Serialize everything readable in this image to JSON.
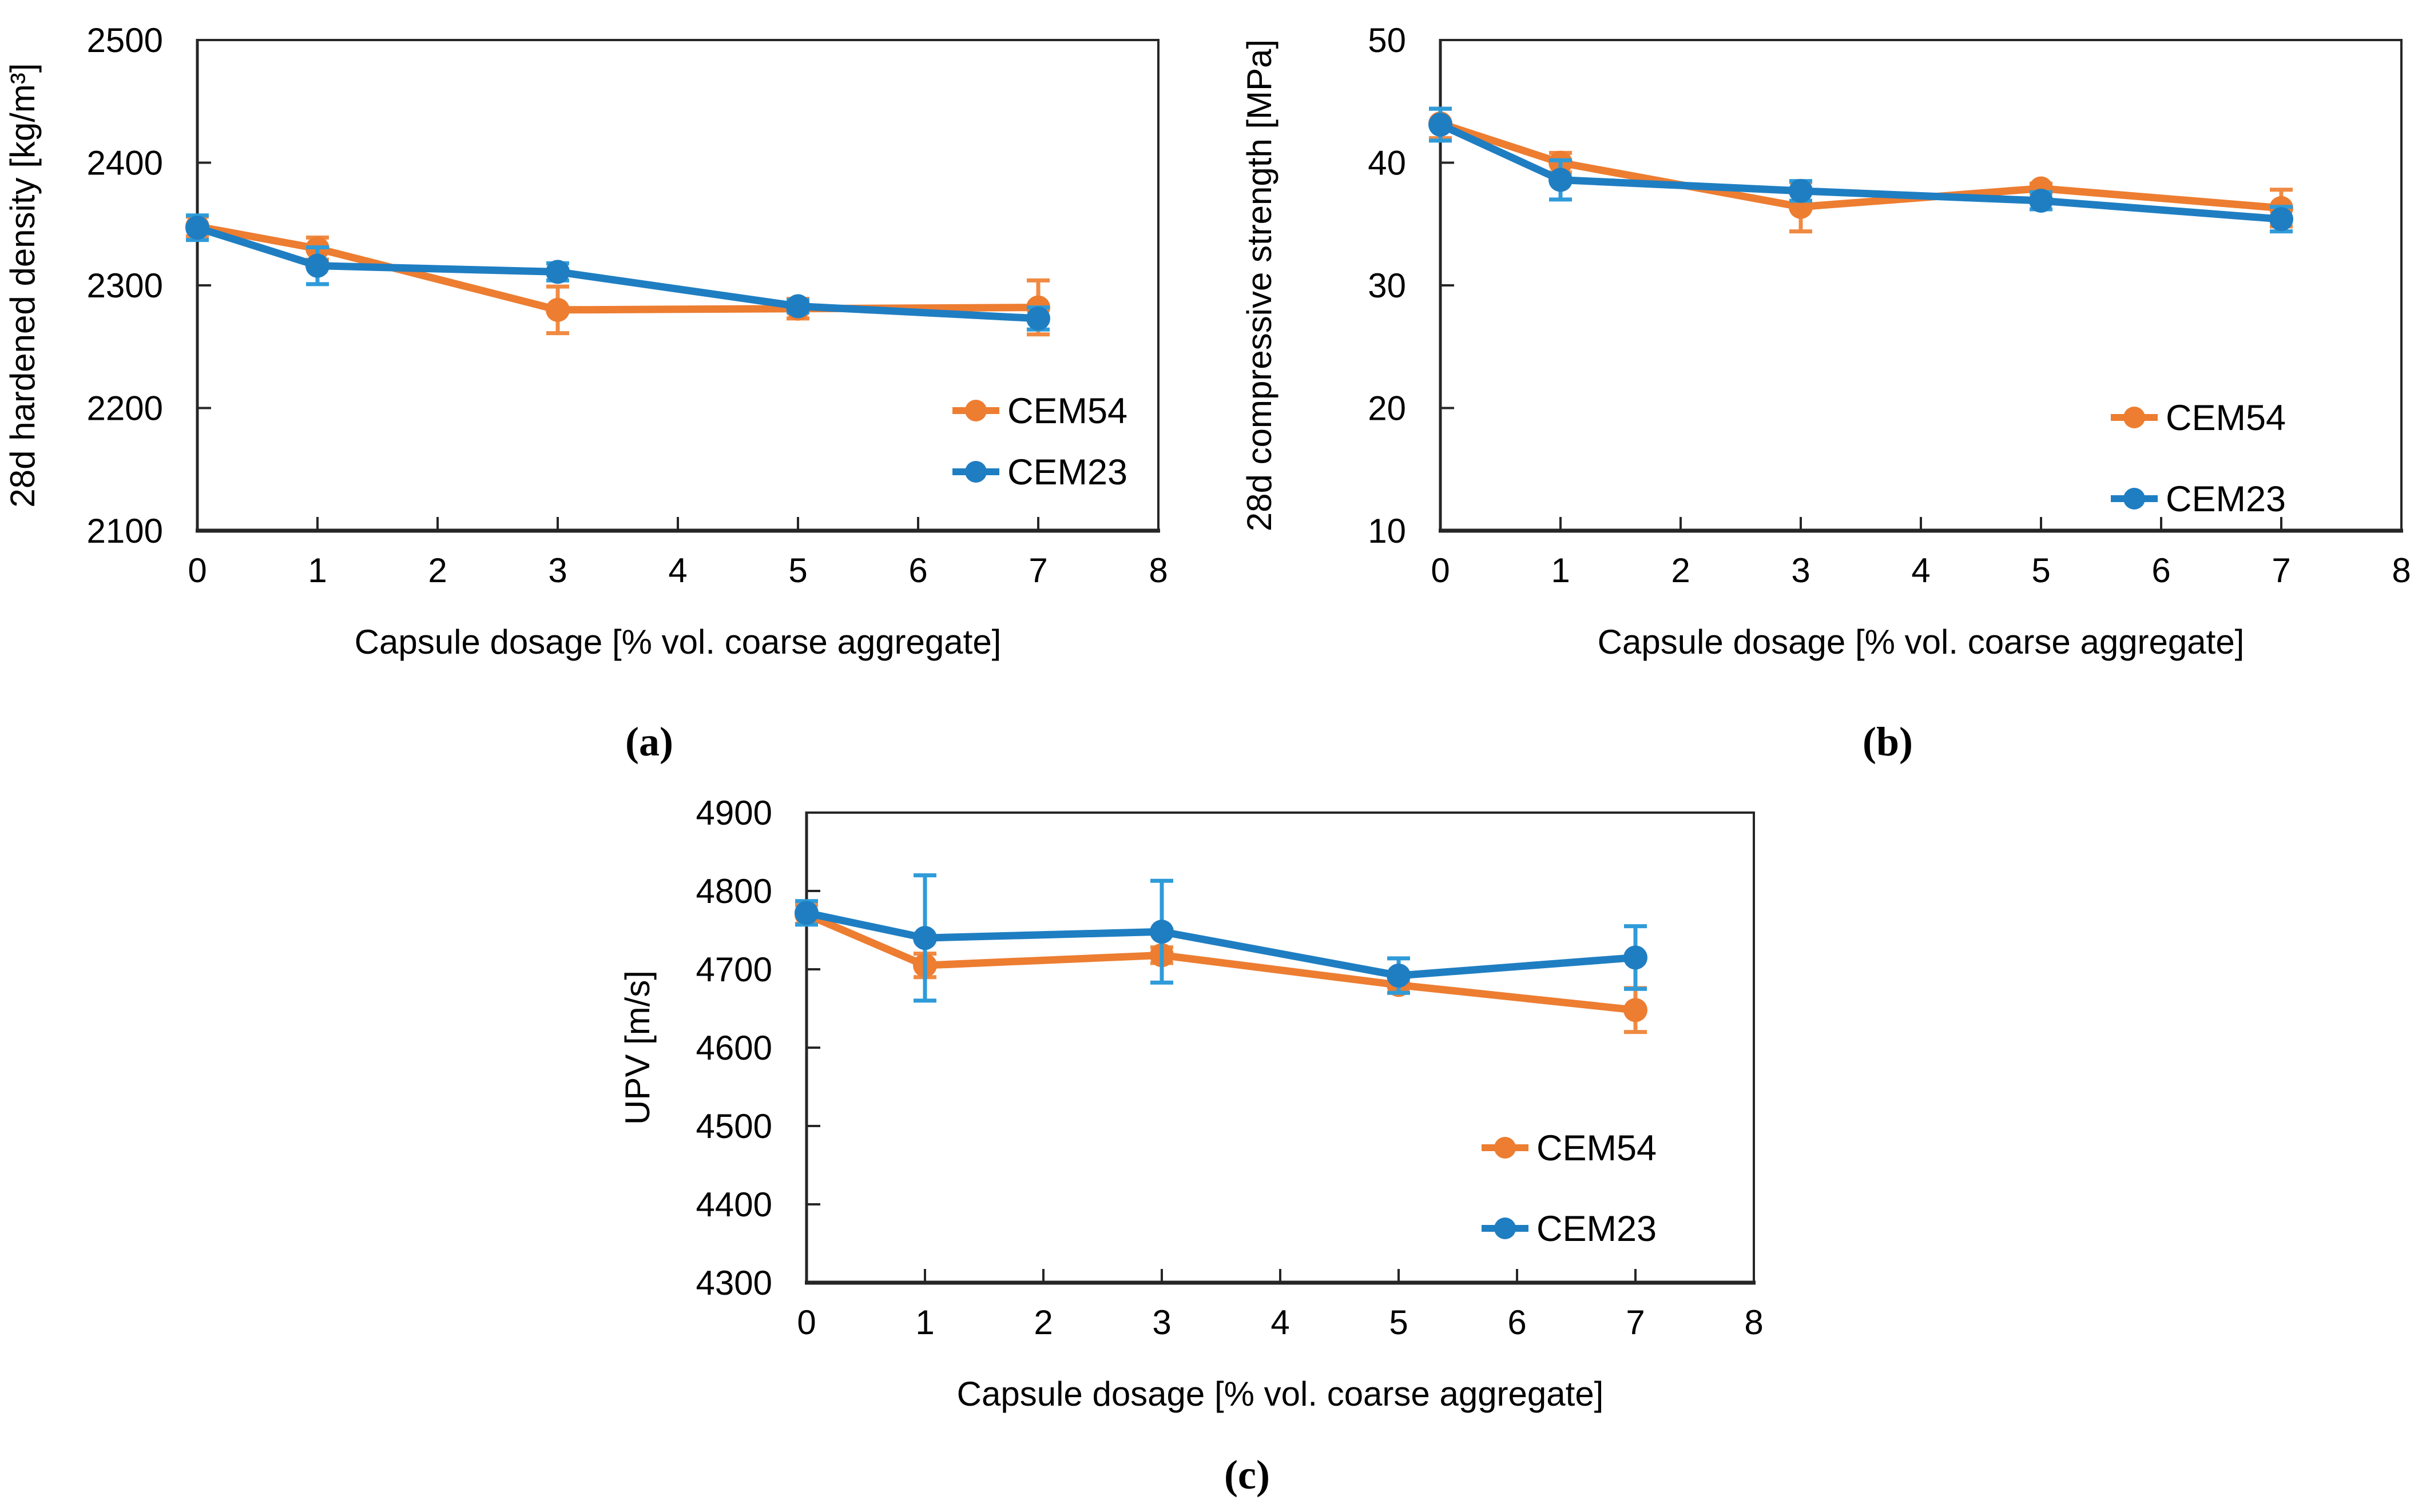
{
  "page": {
    "background": "#ffffff"
  },
  "colors": {
    "cem54": "#ED7D31",
    "cem54_err": "#F08A42",
    "cem23": "#1F7EC2",
    "cem23_err": "#2F9BD9",
    "axis": "#262626",
    "text": "#000000"
  },
  "captions": {
    "a": "(a)",
    "b": "(b)",
    "c": "(c)"
  },
  "chart_data": [
    {
      "id": "a",
      "type": "line",
      "title": "",
      "xlabel": "Capsule dosage [% vol. coarse aggregate]",
      "ylabel": "28d hardened density [kg/m³]",
      "x": [
        0,
        1,
        3,
        5,
        7
      ],
      "xticks": [
        0,
        1,
        2,
        3,
        4,
        5,
        6,
        7,
        8
      ],
      "xlim": [
        0,
        8
      ],
      "yticks": [
        2100,
        2200,
        2300,
        2400,
        2500
      ],
      "ylim": [
        2100,
        2500
      ],
      "grid": false,
      "legend_position": "right-center-inside",
      "series": [
        {
          "name": "CEM54",
          "color_key": "cem54",
          "err_color_key": "cem54_err",
          "values": [
            2348,
            2330,
            2280,
            2281,
            2282
          ],
          "errors": [
            8,
            9,
            19,
            8,
            22
          ]
        },
        {
          "name": "CEM23",
          "color_key": "cem23",
          "err_color_key": "cem23_err",
          "values": [
            2347,
            2316,
            2311,
            2283,
            2273
          ],
          "errors": [
            10,
            15,
            7,
            5,
            9
          ]
        }
      ]
    },
    {
      "id": "b",
      "type": "line",
      "title": "",
      "xlabel": "Capsule dosage [% vol. coarse aggregate]",
      "ylabel": "28d compressive strength [MPa]",
      "x": [
        0,
        1,
        3,
        5,
        7
      ],
      "xticks": [
        0,
        1,
        2,
        3,
        4,
        5,
        6,
        7,
        8
      ],
      "xlim": [
        0,
        8
      ],
      "yticks": [
        10,
        20,
        30,
        40,
        50
      ],
      "ylim": [
        10,
        50
      ],
      "grid": false,
      "legend_position": "right-lower-inside",
      "series": [
        {
          "name": "CEM54",
          "color_key": "cem54",
          "err_color_key": "cem54_err",
          "values": [
            43.2,
            40.0,
            36.4,
            37.9,
            36.3
          ],
          "errors": [
            1.2,
            0.8,
            2.0,
            0.4,
            1.5
          ]
        },
        {
          "name": "CEM23",
          "color_key": "cem23",
          "err_color_key": "cem23_err",
          "values": [
            43.1,
            38.6,
            37.7,
            36.9,
            35.4
          ],
          "errors": [
            1.3,
            1.6,
            0.8,
            0.7,
            1.0
          ]
        }
      ]
    },
    {
      "id": "c",
      "type": "line",
      "title": "",
      "xlabel": "Capsule dosage [% vol. coarse aggregate]",
      "ylabel": "UPV [m/s]",
      "x": [
        0,
        1,
        3,
        5,
        7
      ],
      "xticks": [
        0,
        1,
        2,
        3,
        4,
        5,
        6,
        7,
        8
      ],
      "xlim": [
        0,
        8
      ],
      "yticks": [
        4300,
        4400,
        4500,
        4600,
        4700,
        4800,
        4900
      ],
      "ylim": [
        4300,
        4900
      ],
      "grid": false,
      "legend_position": "right-lower-inside",
      "series": [
        {
          "name": "CEM54",
          "color_key": "cem54",
          "err_color_key": "cem54_err",
          "values": [
            4770,
            4705,
            4718,
            4680,
            4648
          ],
          "errors": [
            12,
            15,
            10,
            10,
            28
          ]
        },
        {
          "name": "CEM23",
          "color_key": "cem23",
          "err_color_key": "cem23_err",
          "values": [
            4772,
            4740,
            4748,
            4692,
            4715
          ],
          "errors": [
            15,
            80,
            65,
            22,
            40
          ]
        }
      ]
    }
  ]
}
